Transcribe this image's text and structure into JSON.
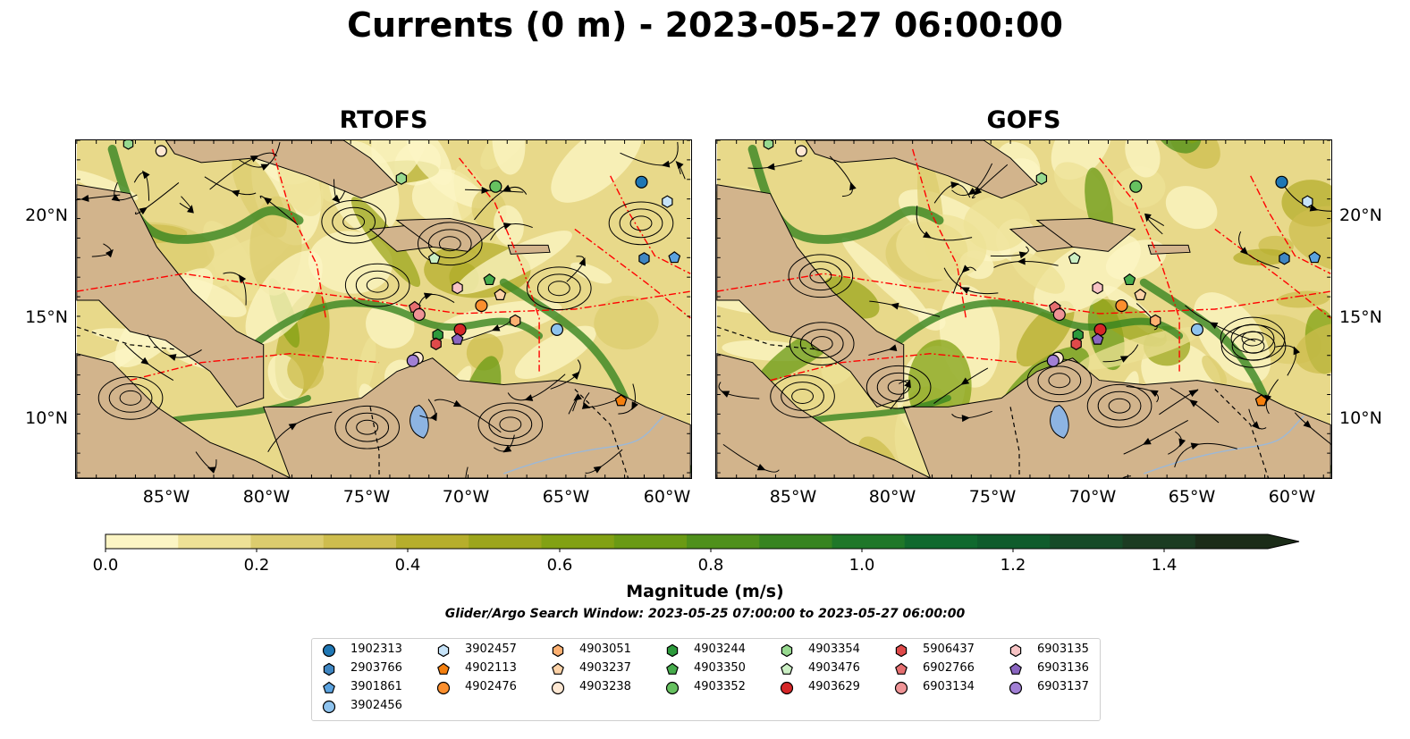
{
  "title": "Currents (0 m) - 2023-05-27 06:00:00",
  "panels": [
    {
      "title": "RTOFS"
    },
    {
      "title": "GOFS"
    }
  ],
  "axes": {
    "x_ticks": [
      "85°W",
      "80°W",
      "75°W",
      "70°W",
      "65°W",
      "60°W"
    ],
    "y_ticks": [
      "20°N",
      "15°N",
      "10°N"
    ]
  },
  "colorbar": {
    "label": "Magnitude (m/s)",
    "ticks": [
      "0.0",
      "0.2",
      "0.4",
      "0.6",
      "0.8",
      "1.0",
      "1.2",
      "1.4"
    ],
    "colors": [
      "#fcf5c4",
      "#eee196",
      "#dccc6e",
      "#cebd4e",
      "#b6ae2c",
      "#9ca51c",
      "#82a113",
      "#6a9a14",
      "#4f901b",
      "#378420",
      "#1f7729",
      "#10692e",
      "#0f5c2c",
      "#164b28",
      "#1b3c22",
      "#1b2c18"
    ]
  },
  "search_window": "Glider/Argo Search Window: 2023-05-25 07:00:00 to 2023-05-27 06:00:00",
  "legend": [
    {
      "id": "1902313",
      "color": "#1f77b4",
      "marker": "circle"
    },
    {
      "id": "2903766",
      "color": "#3f86c2",
      "marker": "hexagon"
    },
    {
      "id": "3901861",
      "color": "#5ba3e0",
      "marker": "pentagon"
    },
    {
      "id": "3902456",
      "color": "#8ec3ee",
      "marker": "circle"
    },
    {
      "id": "3902457",
      "color": "#c6e3f8",
      "marker": "hexagon"
    },
    {
      "id": "4902113",
      "color": "#f47f0e",
      "marker": "pentagon"
    },
    {
      "id": "4902476",
      "color": "#fb8f2e",
      "marker": "circle"
    },
    {
      "id": "4903051",
      "color": "#fdb071",
      "marker": "hexagon"
    },
    {
      "id": "4903237",
      "color": "#fdd2a7",
      "marker": "pentagon"
    },
    {
      "id": "4903238",
      "color": "#fee8d3",
      "marker": "circle"
    },
    {
      "id": "4903244",
      "color": "#2c9a3b",
      "marker": "hexagon"
    },
    {
      "id": "4903350",
      "color": "#46ac4c",
      "marker": "pentagon"
    },
    {
      "id": "4903352",
      "color": "#66c160",
      "marker": "circle"
    },
    {
      "id": "4903354",
      "color": "#97d98f",
      "marker": "hexagon"
    },
    {
      "id": "4903476",
      "color": "#cbefc4",
      "marker": "pentagon"
    },
    {
      "id": "4903629",
      "color": "#d62728",
      "marker": "circle"
    },
    {
      "id": "5906437",
      "color": "#df4a4a",
      "marker": "hexagon"
    },
    {
      "id": "6902766",
      "color": "#e66f70",
      "marker": "pentagon"
    },
    {
      "id": "6903134",
      "color": "#ef9496",
      "marker": "circle"
    },
    {
      "id": "6903135",
      "color": "#f7c3c4",
      "marker": "hexagon"
    },
    {
      "id": "6903136",
      "color": "#8a65c0",
      "marker": "pentagon"
    },
    {
      "id": "6903137",
      "color": "#a17fd4",
      "marker": "circle"
    }
  ],
  "map_colors": {
    "land": "#d2b48c",
    "lake": "#8db4e2",
    "river": "#9bb8d8",
    "streamline": "#000000",
    "eez": "#ff0000"
  }
}
